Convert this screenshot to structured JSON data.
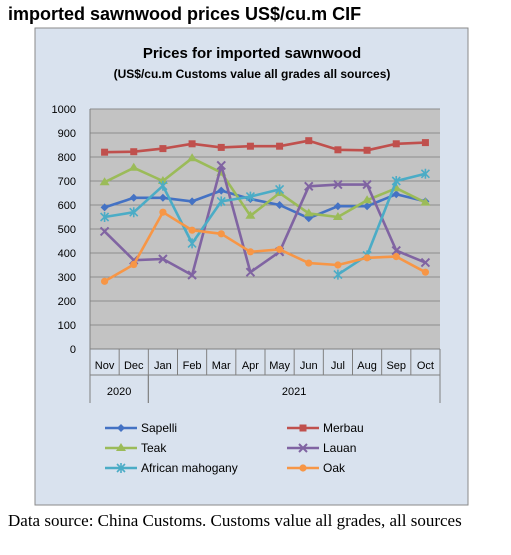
{
  "heading": "imported sawnwood prices US$/cu.m CIF",
  "source_note": "Data source: China Customs. Customs value all grades, all sources",
  "chart_data": {
    "type": "line",
    "title": "Prices for imported sawnwood",
    "subtitle": "(US$/cu.m Customs value all grades all sources)",
    "categories": [
      "Nov",
      "Dec",
      "Jan",
      "Feb",
      "Mar",
      "Apr",
      "May",
      "Jun",
      "Jul",
      "Aug",
      "Sep",
      "Oct"
    ],
    "year_groups": [
      {
        "label": "2020",
        "start": 0,
        "end": 1
      },
      {
        "label": "2021",
        "start": 2,
        "end": 11
      }
    ],
    "ylim": [
      0,
      1000
    ],
    "yticks": [
      "0",
      "100",
      "200",
      "300",
      "400",
      "500",
      "600",
      "700",
      "800",
      "900",
      "1000"
    ],
    "grid": true,
    "legend_position": "bottom",
    "series": [
      {
        "name": "Sapelli",
        "color": "#4472C4",
        "marker": "diamond",
        "values": [
          590,
          630,
          630,
          615,
          660,
          625,
          600,
          545,
          595,
          595,
          645,
          615
        ]
      },
      {
        "name": "Merbau",
        "color": "#C0504D",
        "marker": "square",
        "values": [
          820,
          822,
          835,
          855,
          840,
          845,
          845,
          868,
          830,
          828,
          855,
          860
        ]
      },
      {
        "name": "Teak",
        "color": "#9BBB59",
        "marker": "triangle",
        "values": [
          695,
          755,
          700,
          795,
          735,
          555,
          650,
          565,
          550,
          620,
          670,
          610
        ]
      },
      {
        "name": "Lauan",
        "color": "#8064A2",
        "marker": "x",
        "values": [
          490,
          370,
          375,
          308,
          765,
          320,
          405,
          678,
          685,
          685,
          410,
          360
        ]
      },
      {
        "name": "African mahogany",
        "color": "#4BACC6",
        "marker": "star",
        "values": [
          550,
          570,
          680,
          440,
          615,
          635,
          665,
          null,
          310,
          390,
          700,
          730
        ]
      },
      {
        "name": "Oak",
        "color": "#F79646",
        "marker": "circle",
        "values": [
          282,
          352,
          570,
          495,
          480,
          405,
          415,
          358,
          350,
          380,
          385,
          320
        ]
      }
    ]
  }
}
